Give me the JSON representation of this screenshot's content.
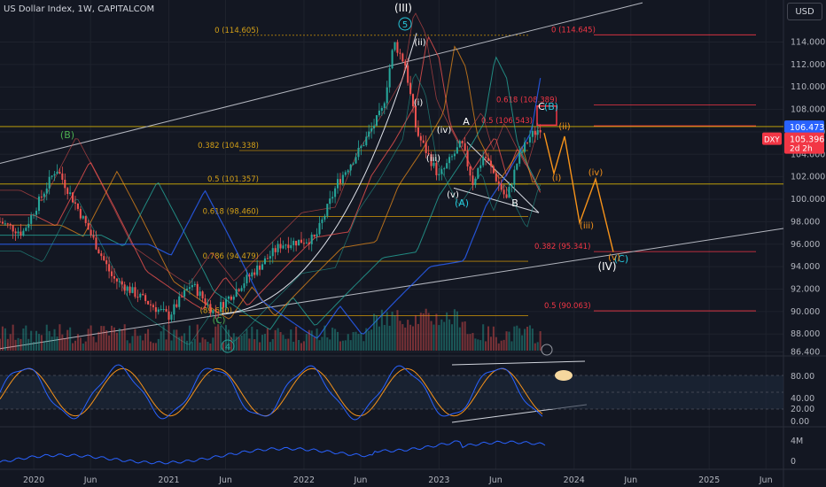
{
  "header": {
    "title": "US Dollar Index, 1W, CAPITALCOM",
    "currency_button": "USD"
  },
  "chart_data": {
    "type": "candlestick",
    "symbol": "DXY",
    "timeframe": "1W",
    "price_axis": {
      "ticks": [
        "114.000",
        "112.000",
        "110.000",
        "108.000",
        "106.000",
        "104.000",
        "102.000",
        "100.000",
        "98.000",
        "96.000",
        "94.000",
        "92.000",
        "90.000",
        "88.000",
        "86.400"
      ],
      "ylim": [
        86.4,
        117.0
      ]
    },
    "time_axis": {
      "ticks": [
        "2020",
        "Jun",
        "2021",
        "Jun",
        "2022",
        "Jun",
        "2023",
        "Jun",
        "2024",
        "Jun",
        "2025",
        "Jun"
      ]
    },
    "last_price": "106.473",
    "symbol_price": "105.396",
    "countdown": "2d 2h",
    "price_series_approx": [
      {
        "date": "2019-10",
        "value": 98.0
      },
      {
        "date": "2019-12",
        "value": 97.0
      },
      {
        "date": "2020-03",
        "value": 102.8
      },
      {
        "date": "2020-05",
        "value": 99.0
      },
      {
        "date": "2020-08",
        "value": 93.0
      },
      {
        "date": "2020-12",
        "value": 90.2
      },
      {
        "date": "2021-01",
        "value": 89.6
      },
      {
        "date": "2021-03",
        "value": 92.5
      },
      {
        "date": "2021-05",
        "value": 89.9
      },
      {
        "date": "2021-08",
        "value": 93.0
      },
      {
        "date": "2021-11",
        "value": 96.0
      },
      {
        "date": "2022-02",
        "value": 96.5
      },
      {
        "date": "2022-04",
        "value": 101.5
      },
      {
        "date": "2022-06",
        "value": 104.5
      },
      {
        "date": "2022-08",
        "value": 108.0
      },
      {
        "date": "2022-09",
        "value": 114.0
      },
      {
        "date": "2022-10",
        "value": 112.0
      },
      {
        "date": "2022-11",
        "value": 106.0
      },
      {
        "date": "2022-12",
        "value": 104.0
      },
      {
        "date": "2023-01",
        "value": 102.0
      },
      {
        "date": "2023-03",
        "value": 105.0
      },
      {
        "date": "2023-04",
        "value": 101.5
      },
      {
        "date": "2023-05",
        "value": 104.0
      },
      {
        "date": "2023-07",
        "value": 100.0
      },
      {
        "date": "2023-08",
        "value": 103.5
      },
      {
        "date": "2023-09",
        "value": 105.5
      },
      {
        "date": "2023-10",
        "value": 106.4
      }
    ],
    "fib_left": [
      {
        "label": "0 (114.605)",
        "value": 114.605
      },
      {
        "label": "0.382 (104.338)",
        "value": 104.338
      },
      {
        "label": "0.5 (101.357)",
        "value": 101.357
      },
      {
        "label": "0.618 (98.460)",
        "value": 98.46
      },
      {
        "label": "0.786 (94.479)",
        "value": 94.479
      },
      {
        "label": "(89.640)",
        "value": 89.64
      }
    ],
    "fib_right": [
      {
        "label": "0 (114.645)",
        "value": 114.645
      },
      {
        "label": "0.618 (108.389)",
        "value": 108.389
      },
      {
        "label": "0.5 (106.543)",
        "value": 106.543
      },
      {
        "label": "0.382 (95.341)",
        "value": 95.341
      },
      {
        "label": "0.5 (90.063)",
        "value": 90.063
      }
    ],
    "wave_labels": [
      "(III)",
      "5",
      "(ii)",
      "(i)",
      "(iv)",
      "(iii)",
      "(v)",
      "A",
      "B",
      "(A)",
      "C",
      "(B)",
      "(B)",
      "4",
      "(C)",
      "(IV)",
      "(C)",
      "(ii)",
      "(i)",
      "(iv)",
      "(iii)",
      "(v)"
    ],
    "stoch_panel": {
      "ticks": [
        "80.00",
        "40.00",
        "20.00",
        "0.00"
      ]
    },
    "volume_panel": {
      "ticks": [
        "4M",
        "0"
      ]
    }
  },
  "colors": {
    "background": "#131722",
    "up": "#26a69a",
    "down": "#ef5350",
    "grid": "#1e222d",
    "axis_text": "#b2b5be",
    "fib_line": "#b8860b",
    "fib_right": "#f23645",
    "projection": "#f7931a",
    "last_price_bg": "#2962ff",
    "symbol_bg": "#f23645",
    "stoch_k": "#2962ff",
    "stoch_d": "#f7931a"
  }
}
